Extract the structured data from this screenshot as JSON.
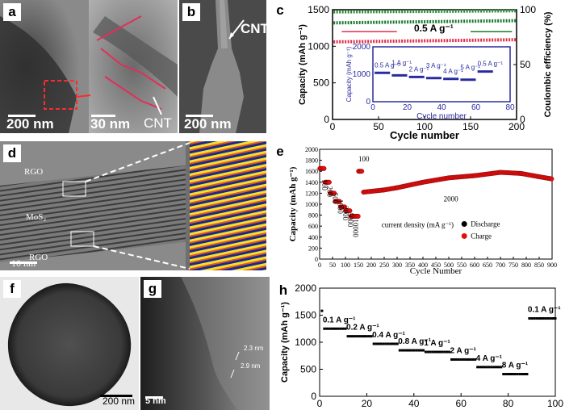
{
  "panels": {
    "a": {
      "label": "a",
      "scale_left": "200 nm",
      "scale_right": "30 nm",
      "annotation": "CNT"
    },
    "b": {
      "label": "b",
      "scale": "200 nm",
      "annotation": "CNT"
    },
    "d": {
      "label": "d",
      "rgo_top": "RGO",
      "mos2": "MoS₂",
      "rgo_bottom": "RGO",
      "scale": "10 nm"
    },
    "f": {
      "label": "f",
      "scale": "200 nm"
    },
    "g": {
      "label": "g",
      "scale": "5 nm",
      "spacing1": "2.3 nm",
      "spacing2": "2.9 nm"
    }
  },
  "colors": {
    "discharge": "#1a7a2e",
    "charge": "#e0304a",
    "efficiency": "#2e8b3a",
    "rate_panel_e": "#e01010",
    "panel_h": "#000000",
    "inset": "#2a2aa0"
  },
  "chart_data": [
    {
      "panel": "c",
      "type": "scatter",
      "xlabel": "Cycle number",
      "ylabel": "Capacity (mAh g⁻¹)",
      "y2label": "Coulombic efficiency (%)",
      "xlim": [
        0,
        200
      ],
      "ylim": [
        0,
        1500
      ],
      "y2lim": [
        0,
        100
      ],
      "xticks": [
        0,
        50,
        100,
        150,
        200
      ],
      "yticks": [
        0,
        500,
        1000,
        1500
      ],
      "y2ticks": [
        0,
        50,
        100
      ],
      "annotation": "0.5 A g⁻¹",
      "series": [
        {
          "axis": "left",
          "x": [
            1,
            200
          ],
          "values": [
            1320,
            1350
          ]
        },
        {
          "axis": "left",
          "x": [
            1,
            200
          ],
          "values": [
            1060,
            1090
          ]
        },
        {
          "axis": "right",
          "x": [
            1,
            200
          ],
          "values": [
            98,
            99
          ]
        }
      ],
      "inset": {
        "xlabel": "Cycle number",
        "ylabel": "Capacity (mAh g⁻¹)",
        "xlim": [
          0,
          80
        ],
        "ylim": [
          0,
          2000
        ],
        "xticks": [
          0,
          20,
          40,
          60,
          80
        ],
        "yticks": [
          0,
          1000,
          2000
        ],
        "rate_labels": [
          "0.5 A g⁻¹",
          "1 A g⁻¹",
          "2 A g⁻¹",
          "3 A g⁻¹",
          "4 A g⁻¹",
          "5 A g⁻¹",
          "0.5 A g⁻¹"
        ],
        "segments": [
          {
            "x": [
              1,
              10
            ],
            "value": 1050
          },
          {
            "x": [
              11,
              20
            ],
            "value": 960
          },
          {
            "x": [
              21,
              30
            ],
            "value": 900
          },
          {
            "x": [
              31,
              40
            ],
            "value": 860
          },
          {
            "x": [
              41,
              50
            ],
            "value": 830
          },
          {
            "x": [
              51,
              60
            ],
            "value": 800
          },
          {
            "x": [
              61,
              70
            ],
            "value": 1100
          }
        ]
      }
    },
    {
      "panel": "e",
      "type": "scatter",
      "xlabel": "Cycle Number",
      "ylabel": "Capacity (mAh g⁻¹)",
      "xlim": [
        0,
        900
      ],
      "ylim": [
        0,
        2000
      ],
      "xticks": [
        0,
        50,
        100,
        150,
        200,
        250,
        300,
        350,
        400,
        450,
        500,
        550,
        600,
        650,
        700,
        750,
        800,
        850,
        900
      ],
      "yticks": [
        0,
        200,
        400,
        600,
        800,
        1000,
        1200,
        1400,
        1600,
        1800,
        2000
      ],
      "rate_labels": [
        "100",
        "200",
        "500",
        "1000",
        "2000",
        "5000",
        "10000"
      ],
      "label_100": "100",
      "label_2000": "2000",
      "legend_title": "current density (mA g⁻¹)",
      "legend": [
        "Discharge",
        "Charge"
      ],
      "rate_segments": [
        {
          "x": [
            1,
            20
          ],
          "value": 1650
        },
        {
          "x": [
            21,
            40
          ],
          "value": 1400
        },
        {
          "x": [
            41,
            60
          ],
          "value": 1200
        },
        {
          "x": [
            61,
            80
          ],
          "value": 1050
        },
        {
          "x": [
            81,
            100
          ],
          "value": 950
        },
        {
          "x": [
            101,
            120
          ],
          "value": 880
        },
        {
          "x": [
            121,
            150
          ],
          "value": 780
        },
        {
          "x": [
            151,
            165
          ],
          "value": 1600
        }
      ],
      "long_cycle": {
        "x": [
          170,
          250,
          300,
          400,
          500,
          600,
          700,
          780,
          850,
          900
        ],
        "values": [
          1220,
          1260,
          1300,
          1400,
          1480,
          1520,
          1580,
          1560,
          1500,
          1460
        ]
      }
    },
    {
      "panel": "h",
      "type": "scatter",
      "ylabel": "Capacity (mAh g⁻¹)",
      "xlim": [
        0,
        100
      ],
      "ylim": [
        0,
        2000
      ],
      "xticks": [
        0,
        20,
        40,
        60,
        80,
        100
      ],
      "yticks": [
        0,
        500,
        1000,
        1500,
        2000
      ],
      "rate_labels": [
        "0.1 A g⁻¹",
        "0.2 A g⁻¹",
        "0.4 A g⁻¹",
        "0.8 A g⁻¹",
        "1 A g⁻¹",
        "2 A g⁻¹",
        "4 A g⁻¹",
        "8 A g⁻¹",
        "0.1 A g⁻¹"
      ],
      "segments": [
        {
          "x": [
            2,
            11
          ],
          "value": 1250
        },
        {
          "x": [
            12,
            22
          ],
          "value": 1110
        },
        {
          "x": [
            23,
            33
          ],
          "value": 970
        },
        {
          "x": [
            34,
            44
          ],
          "value": 850
        },
        {
          "x": [
            45,
            55
          ],
          "value": 820
        },
        {
          "x": [
            56,
            66
          ],
          "value": 680
        },
        {
          "x": [
            67,
            77
          ],
          "value": 540
        },
        {
          "x": [
            78,
            88
          ],
          "value": 410
        },
        {
          "x": [
            89,
            100
          ],
          "value": 1440
        }
      ],
      "first_point": {
        "x": 1,
        "value": 1580
      }
    }
  ]
}
